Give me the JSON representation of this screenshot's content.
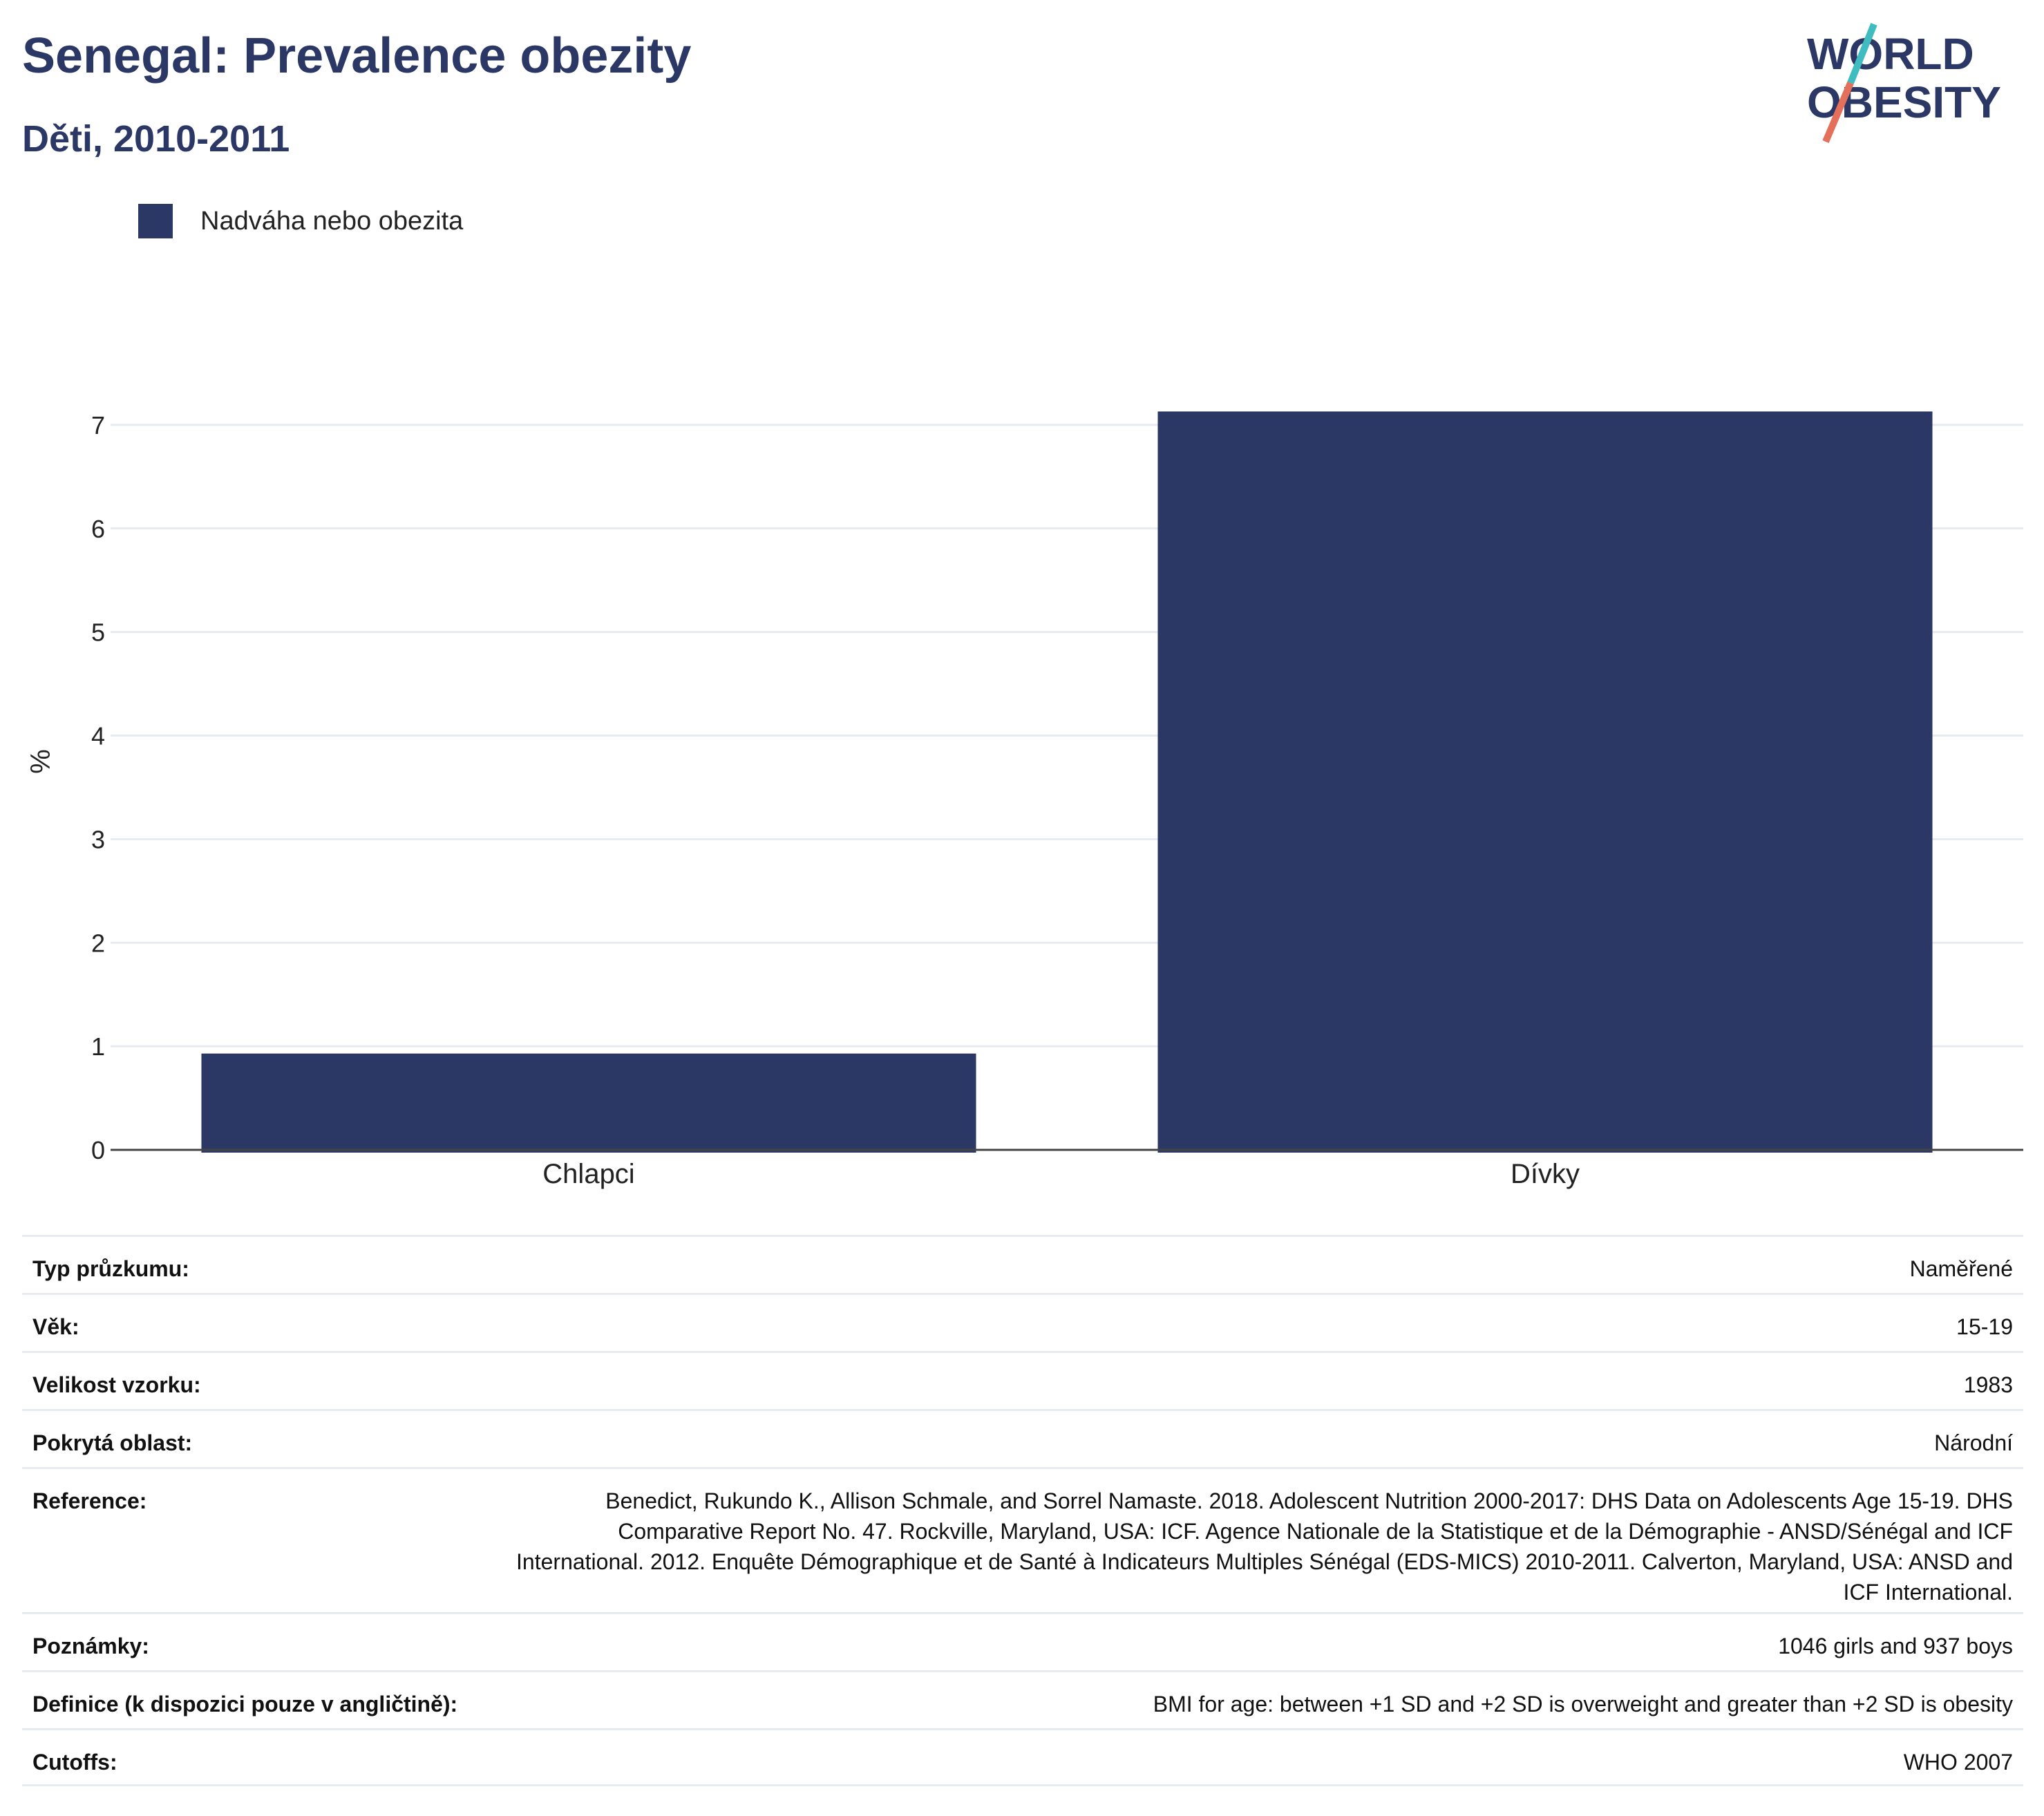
{
  "header": {
    "title": "Senegal: Prevalence obezity",
    "subtitle": "Děti, 2010-2011"
  },
  "logo": {
    "line1": "WORLD",
    "line2": "OBESITY"
  },
  "colors": {
    "bar": "#2b3765",
    "title": "#2b3765",
    "grid": "#e6ebf1",
    "logo_teal": "#3fbcc0",
    "logo_coral": "#e4705c"
  },
  "chart_data": {
    "type": "bar",
    "categories": [
      "Chlapci",
      "Dívky"
    ],
    "series": [
      {
        "name": "Nadváha nebo obezita",
        "values": [
          0.93,
          7.13
        ]
      }
    ],
    "ylabel": "%",
    "xlabel": "",
    "ylim": [
      0,
      7.5
    ],
    "yticks": [
      0,
      1,
      2,
      3,
      4,
      5,
      6,
      7
    ],
    "grid": true,
    "legend": "top-left"
  },
  "details": [
    {
      "label": "Typ průzkumu:",
      "value": "Naměřené"
    },
    {
      "label": "Věk:",
      "value": "15-19"
    },
    {
      "label": "Velikost vzorku:",
      "value": "1983"
    },
    {
      "label": "Pokrytá oblast:",
      "value": "Národní"
    },
    {
      "label": "Reference:",
      "value": "Benedict, Rukundo K., Allison Schmale, and Sorrel Namaste. 2018. Adolescent Nutrition 2000-2017: DHS Data on Adolescents Age 15-19. DHS Comparative Report No. 47. Rockville, Maryland, USA: ICF. Agence Nationale de la Statistique et de la Démographie - ANSD/Sénégal and ICF International. 2012. Enquête Démographique et de Santé à Indicateurs Multiples Sénégal (EDS-MICS) 2010-2011. Calverton, Maryland, USA: ANSD and ICF International."
    },
    {
      "label": "Poznámky:",
      "value": "1046 girls and 937 boys"
    },
    {
      "label": "Definice (k dispozici pouze v angličtině):",
      "value": "BMI for age: between +1 SD and +2 SD is overweight and greater than +2 SD is obesity"
    },
    {
      "label": "Cutoffs:",
      "value": "WHO 2007"
    }
  ]
}
